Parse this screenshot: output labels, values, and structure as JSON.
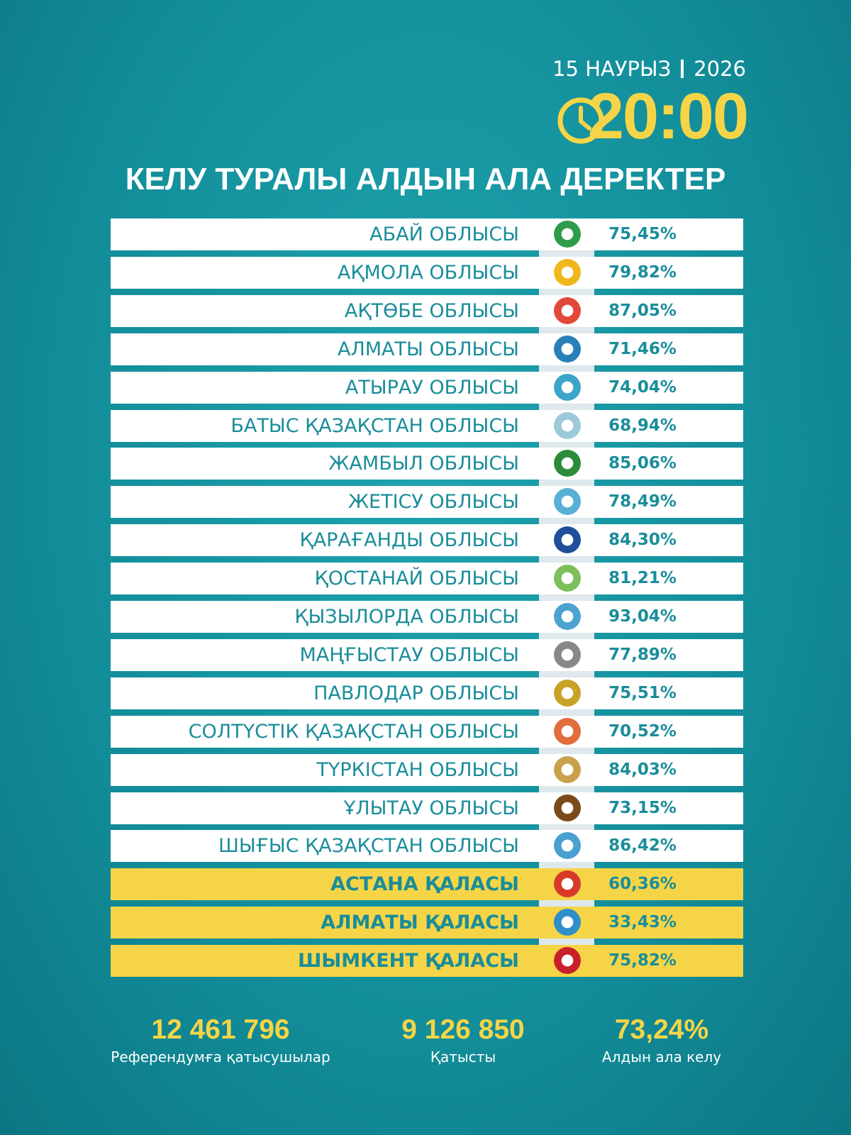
{
  "header": {
    "date": "15 НАУРЫЗ",
    "year": "2026",
    "time": "20:00",
    "title": "КЕЛУ ТУРАЛЫ АЛДЫН АЛА ДЕРЕКТЕР"
  },
  "table": {
    "rows": [
      [
        "АБАЙ ОБЛЫСЫ",
        "75,45%"
      ],
      [
        "АҚМОЛА ОБЛЫСЫ",
        "79,82%"
      ],
      [
        "АҚТӨБЕ ОБЛЫСЫ",
        "87,05%"
      ],
      [
        "АЛМАТЫ ОБЛЫСЫ",
        "71,46%"
      ],
      [
        "АТЫРАУ ОБЛЫСЫ",
        "74,04%"
      ],
      [
        "БАТЫС ҚАЗАҚСТАН ОБЛЫСЫ",
        "68,94%"
      ],
      [
        "ЖАМБЫЛ ОБЛЫСЫ",
        "85,06%"
      ],
      [
        "ЖЕТІСУ ОБЛЫСЫ",
        "78,49%"
      ],
      [
        "ҚАРАҒАНДЫ ОБЛЫСЫ",
        "84,30%"
      ],
      [
        "ҚОСТАНАЙ ОБЛЫСЫ",
        "81,21%"
      ],
      [
        "ҚЫЗЫЛОРДА ОБЛЫСЫ",
        "93,04%"
      ],
      [
        "МАҢҒЫСТАУ ОБЛЫСЫ",
        "77,89%"
      ],
      [
        "ПАВЛОДАР ОБЛЫСЫ",
        "75,51%"
      ],
      [
        "СОЛТҮСТІК ҚАЗАҚСТАН ОБЛЫСЫ",
        "70,52%"
      ],
      [
        "ТҮРКІСТАН ОБЛЫСЫ",
        "84,03%"
      ],
      [
        "ҰЛЫТАУ ОБЛЫСЫ",
        "73,15%"
      ],
      [
        "ШЫҒЫС ҚАЗАҚСТАН ОБЛЫСЫ",
        "86,42%"
      ],
      [
        "АСТАНА ҚАЛАСЫ",
        "60,36%"
      ],
      [
        "АЛМАТЫ ҚАЛАСЫ",
        "33,43%"
      ],
      [
        "ШЫМКЕНТ ҚАЛАСЫ",
        "75,82%"
      ]
    ]
  },
  "stats": [
    {
      "value": "12 461 796",
      "label": "Референдумға қатысушылар"
    },
    {
      "value": "9 126 850",
      "label": "Қатысты"
    },
    {
      "value": "73,24%",
      "label": "Алдын ала келу"
    }
  ]
}
